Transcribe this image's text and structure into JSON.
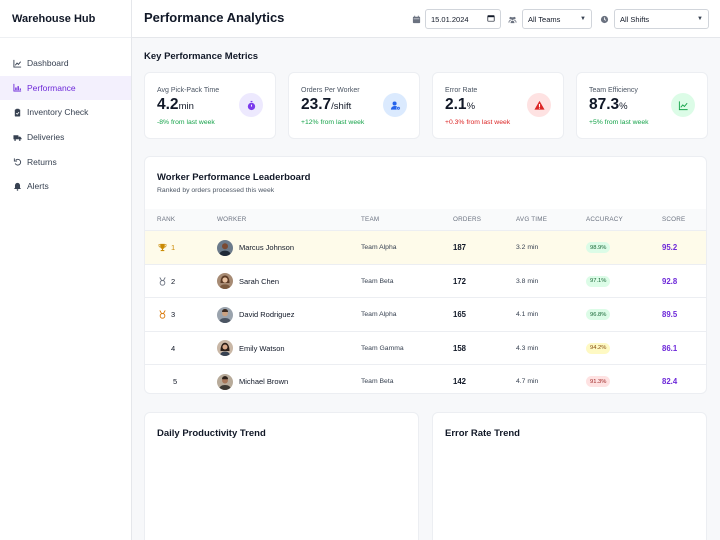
{
  "sidebar": {
    "brand": "Warehouse Hub",
    "items": [
      {
        "label": "Dashboard",
        "icon": "chart-line-icon"
      },
      {
        "label": "Performance",
        "icon": "bar-chart-icon",
        "active": true
      },
      {
        "label": "Inventory Check",
        "icon": "clipboard-check-icon"
      },
      {
        "label": "Deliveries",
        "icon": "truck-icon"
      },
      {
        "label": "Returns",
        "icon": "undo-icon"
      },
      {
        "label": "Alerts",
        "icon": "bell-icon"
      }
    ]
  },
  "header": {
    "title": "Performance Analytics",
    "date_value": "15.01.2024",
    "team_select": "All Teams",
    "shift_select": "All Shifts"
  },
  "kpi_section": {
    "title": "Key Performance Metrics",
    "cards": [
      {
        "label": "Avg Pick-Pack Time",
        "value": "4.2",
        "unit": "min",
        "change": "-8% from last week",
        "trend": "positive",
        "icon": "stopwatch-icon",
        "accent": "#7c3aed",
        "badge_bg": "#ede9fe"
      },
      {
        "label": "Orders Per Worker",
        "value": "23.7",
        "unit": "/shift",
        "change": "+12% from last week",
        "trend": "positive",
        "icon": "user-gear-icon",
        "accent": "#2563eb",
        "badge_bg": "#dbeafe"
      },
      {
        "label": "Error Rate",
        "value": "2.1",
        "unit": "%",
        "change": "+0.3% from last week",
        "trend": "negative",
        "icon": "warning-icon",
        "accent": "#dc2626",
        "badge_bg": "#fee2e2"
      },
      {
        "label": "Team Efficiency",
        "value": "87.3",
        "unit": "%",
        "change": "+5% from last week",
        "trend": "positive",
        "icon": "trend-chart-icon",
        "accent": "#16a34a",
        "badge_bg": "#dcfce7"
      }
    ]
  },
  "leaderboard": {
    "title": "Worker Performance Leaderboard",
    "subtitle": "Ranked by orders processed this week",
    "columns": [
      "RANK",
      "WORKER",
      "TEAM",
      "ORDERS",
      "AVG TIME",
      "ACCURACY",
      "SCORE"
    ],
    "rows": [
      {
        "rank": "1",
        "rank_icon": "trophy-icon",
        "worker": "Marcus Johnson",
        "team": "Team Alpha",
        "orders": "187",
        "avg_time": "3.2 min",
        "accuracy": "98.9%",
        "accuracy_level": "green",
        "score": "95.2"
      },
      {
        "rank": "2",
        "rank_icon": "silver-medal-icon",
        "worker": "Sarah Chen",
        "team": "Team Beta",
        "orders": "172",
        "avg_time": "3.8 min",
        "accuracy": "97.1%",
        "accuracy_level": "green",
        "score": "92.8"
      },
      {
        "rank": "3",
        "rank_icon": "bronze-medal-icon",
        "worker": "David Rodriguez",
        "team": "Team Alpha",
        "orders": "165",
        "avg_time": "4.1 min",
        "accuracy": "96.8%",
        "accuracy_level": "green",
        "score": "89.5"
      },
      {
        "rank": "4",
        "rank_icon": "",
        "worker": "Emily Watson",
        "team": "Team Gamma",
        "orders": "158",
        "avg_time": "4.3 min",
        "accuracy": "94.2%",
        "accuracy_level": "yellow",
        "score": "86.1"
      },
      {
        "rank": "5",
        "rank_icon": "",
        "worker": "Michael Brown",
        "team": "Team Beta",
        "orders": "142",
        "avg_time": "4.7 min",
        "accuracy": "91.3%",
        "accuracy_level": "red",
        "score": "82.4"
      }
    ]
  },
  "charts": {
    "productivity_title": "Daily Productivity Trend",
    "error_title": "Error Rate Trend"
  }
}
